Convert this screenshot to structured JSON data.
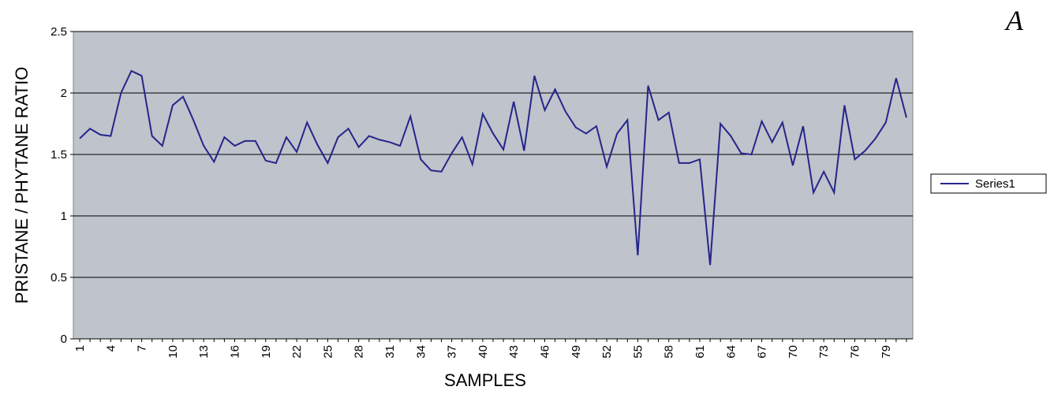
{
  "chart_data": {
    "type": "line",
    "annotation": "A",
    "xlabel": "SAMPLES",
    "ylabel": "PRISTANE / PHYTANE RATIO",
    "categories": [
      "1",
      null,
      null,
      "4",
      null,
      null,
      "7",
      null,
      null,
      "10",
      null,
      null,
      "13",
      null,
      null,
      "16",
      null,
      null,
      "19",
      null,
      null,
      "22",
      null,
      null,
      "25",
      null,
      null,
      "28",
      null,
      null,
      "31",
      null,
      null,
      "34",
      null,
      null,
      "37",
      null,
      null,
      "40",
      null,
      null,
      "43",
      null,
      null,
      "46",
      null,
      null,
      "49",
      null,
      null,
      "52",
      null,
      null,
      "55",
      null,
      null,
      "58",
      null,
      null,
      "61",
      null,
      null,
      "64",
      null,
      null,
      "67",
      null,
      null,
      "70",
      null,
      null,
      "73",
      null,
      null,
      "76",
      null,
      null,
      "79",
      null,
      null
    ],
    "series": [
      {
        "name": "Series1",
        "color": "#25258a",
        "values": [
          1.63,
          1.71,
          1.66,
          1.65,
          2.0,
          2.18,
          2.14,
          1.65,
          1.57,
          1.9,
          1.97,
          1.78,
          1.57,
          1.44,
          1.64,
          1.57,
          1.61,
          1.61,
          1.45,
          1.43,
          1.64,
          1.52,
          1.76,
          1.58,
          1.43,
          1.64,
          1.71,
          1.56,
          1.65,
          1.62,
          1.6,
          1.57,
          1.81,
          1.46,
          1.37,
          1.36,
          1.51,
          1.64,
          1.42,
          1.83,
          1.67,
          1.54,
          1.93,
          1.53,
          2.14,
          1.86,
          2.03,
          1.85,
          1.72,
          1.67,
          1.73,
          1.4,
          1.67,
          1.78,
          0.68,
          2.06,
          1.78,
          1.84,
          1.43,
          1.43,
          1.46,
          0.6,
          1.75,
          1.65,
          1.51,
          1.5,
          1.77,
          1.6,
          1.76,
          1.41,
          1.73,
          1.19,
          1.36,
          1.19,
          1.9,
          1.46,
          1.53,
          1.63,
          1.76,
          2.12,
          1.8
        ]
      }
    ],
    "ylim": [
      0,
      2.5
    ],
    "yticks": [
      0,
      0.5,
      1,
      1.5,
      2,
      2.5
    ],
    "grid": true,
    "legend": "right"
  }
}
